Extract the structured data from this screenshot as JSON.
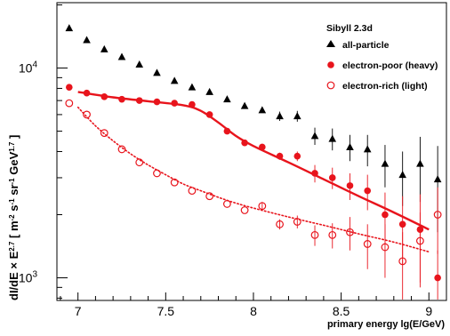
{
  "chart_data": {
    "type": "scatter",
    "title": "",
    "xlabel": "primary energy lg(E/GeV)",
    "ylabel_html": "dI/dE × E<tspan baseline-shift='super' font-size='8'>2.7</tspan> [ m<tspan baseline-shift='super' font-size='8'>-2</tspan> s<tspan baseline-shift='super' font-size='8'>-1</tspan> sr<tspan baseline-shift='super' font-size='8'>-1</tspan> GeV<tspan baseline-shift='super' font-size='8'>1.7</tspan> ]",
    "ylabel_parts": {
      "a": "dI/dE × E",
      "a_sup": "2.7",
      "b": " [ m",
      "b_sup": "-2",
      "c": " s",
      "c_sup": "-1",
      "d": " sr",
      "d_sup": "-1",
      "e": " GeV",
      "e_sup": "1.7",
      "f": " ]"
    },
    "xlim": [
      6.88,
      9.1
    ],
    "ylim": [
      780,
      20500
    ],
    "yscale": "log",
    "xticks": [
      7,
      7.5,
      8,
      8.5,
      9
    ],
    "xtick_labels": [
      "7",
      "7.5",
      "8",
      "8.5",
      "9"
    ],
    "yticks": [
      1000,
      10000
    ],
    "ytick_label_base": "10",
    "ytick_label_exps": [
      "3",
      "4"
    ],
    "legend": {
      "title": "Sibyll 2.3d",
      "position": "top-right",
      "entries": [
        "all-particle",
        "electron-poor (heavy)",
        "electron-rich (light)"
      ]
    },
    "series": [
      {
        "name": "all-particle",
        "marker": "filled-triangle",
        "color": "#000000",
        "x": [
          6.95,
          7.05,
          7.15,
          7.25,
          7.35,
          7.45,
          7.55,
          7.65,
          7.75,
          7.85,
          7.95,
          8.05,
          8.15,
          8.25,
          8.35,
          8.45,
          8.55,
          8.65,
          8.75,
          8.85,
          8.95,
          9.05
        ],
        "y": [
          15500,
          13600,
          12300,
          11300,
          10400,
          9500,
          8700,
          8100,
          7700,
          7100,
          6600,
          6300,
          5900,
          5900,
          4750,
          4600,
          4200,
          4100,
          3500,
          3100,
          3500,
          2950
        ],
        "err": [
          0,
          0,
          0,
          0,
          0,
          0,
          0,
          0,
          0,
          0,
          0,
          0,
          300,
          350,
          450,
          550,
          600,
          700,
          800,
          900,
          1200,
          1300
        ]
      },
      {
        "name": "electron-poor (heavy)",
        "marker": "filled-circle",
        "color": "#e8141c",
        "x": [
          6.95,
          7.05,
          7.15,
          7.25,
          7.35,
          7.45,
          7.55,
          7.65,
          7.75,
          7.85,
          7.95,
          8.05,
          8.15,
          8.25,
          8.35,
          8.45,
          8.55,
          8.65,
          8.75,
          8.85,
          8.95,
          9.05
        ],
        "y": [
          8100,
          7600,
          7300,
          7100,
          7000,
          6900,
          6800,
          6700,
          6000,
          5000,
          4400,
          4200,
          3800,
          3800,
          3150,
          3000,
          2750,
          2600,
          2000,
          1800,
          1700,
          1000
        ],
        "err": [
          0,
          0,
          0,
          0,
          0,
          0,
          0,
          0,
          0,
          0,
          0,
          150,
          150,
          200,
          300,
          350,
          400,
          500,
          550,
          650,
          800,
          350
        ]
      },
      {
        "name": "electron-rich (light)",
        "marker": "open-circle",
        "color": "#e8141c",
        "x": [
          6.95,
          7.05,
          7.15,
          7.25,
          7.35,
          7.45,
          7.55,
          7.65,
          7.75,
          7.85,
          7.95,
          8.05,
          8.15,
          8.25,
          8.35,
          8.45,
          8.55,
          8.65,
          8.75,
          8.85,
          8.95,
          9.05
        ],
        "y": [
          6800,
          6000,
          4900,
          4100,
          3550,
          3150,
          2850,
          2600,
          2450,
          2250,
          2100,
          2200,
          1800,
          1850,
          1600,
          1600,
          1650,
          1450,
          1400,
          1200,
          1500,
          2000
        ],
        "err": [
          0,
          0,
          0,
          0,
          0,
          0,
          0,
          0,
          0,
          0,
          0,
          100,
          100,
          130,
          180,
          220,
          300,
          350,
          400,
          450,
          550,
          700
        ]
      }
    ],
    "fits": [
      {
        "series": "electron-poor (heavy)",
        "style": "solid",
        "color": "#e8141c",
        "x": [
          7.0,
          7.2,
          7.4,
          7.6,
          7.7,
          7.8,
          7.9,
          8.0,
          8.2,
          8.4,
          8.6,
          8.8,
          9.0
        ],
        "y": [
          7700,
          7250,
          6950,
          6650,
          6250,
          5500,
          4750,
          4250,
          3550,
          2950,
          2450,
          2050,
          1700
        ]
      },
      {
        "series": "electron-rich (light)",
        "style": "dotted",
        "color": "#e8141c",
        "x": [
          7.0,
          7.1,
          7.2,
          7.3,
          7.4,
          7.5,
          7.6,
          7.7,
          7.8,
          7.9,
          8.0,
          8.2,
          8.4,
          8.6,
          8.8,
          9.0
        ],
        "y": [
          6500,
          5300,
          4500,
          3900,
          3450,
          3100,
          2800,
          2600,
          2420,
          2270,
          2150,
          1950,
          1780,
          1620,
          1480,
          1330
        ]
      }
    ]
  }
}
